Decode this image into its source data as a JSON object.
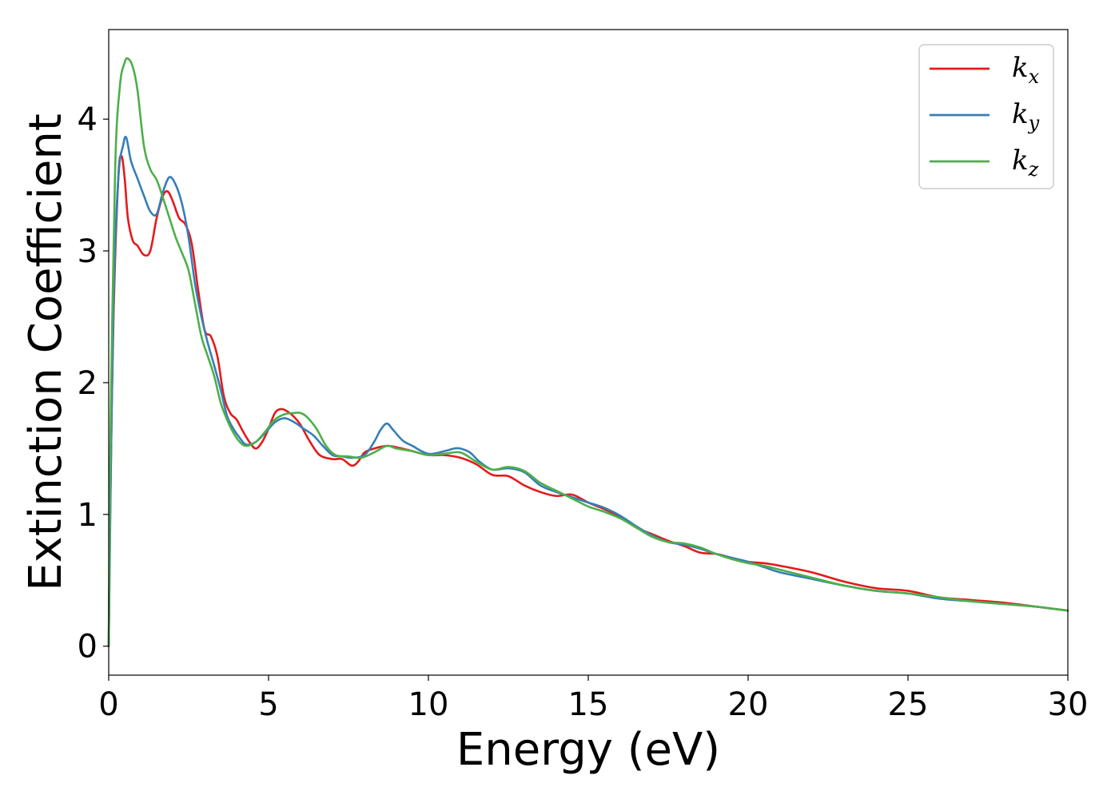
{
  "chart_data": {
    "type": "line",
    "title": "",
    "xlabel": "Energy (eV)",
    "ylabel": "Extinction Coefficient",
    "xlim": [
      0,
      30
    ],
    "ylim": [
      -0.22,
      4.68
    ],
    "xticks": [
      0,
      5,
      10,
      15,
      20,
      25,
      30
    ],
    "xtick_labels": [
      "0",
      "5",
      "10",
      "15",
      "20",
      "25",
      "30"
    ],
    "yticks": [
      0,
      1,
      2,
      3,
      4
    ],
    "ytick_labels": [
      "0",
      "1",
      "2",
      "3",
      "4"
    ],
    "grid": false,
    "legend_position": "top-right",
    "colors": {
      "kx": "#e41a1c",
      "ky": "#377eb8",
      "kz": "#4daf4a"
    },
    "series": [
      {
        "name": "kx",
        "symbol": "k",
        "subscript": "x",
        "color": "#e41a1c",
        "points": [
          [
            0,
            0
          ],
          [
            0.05,
            1.1
          ],
          [
            0.15,
            2.5
          ],
          [
            0.3,
            3.55
          ],
          [
            0.4,
            3.72
          ],
          [
            0.5,
            3.55
          ],
          [
            0.6,
            3.25
          ],
          [
            0.75,
            3.08
          ],
          [
            0.9,
            3.04
          ],
          [
            1.1,
            2.97
          ],
          [
            1.3,
            3.0
          ],
          [
            1.5,
            3.25
          ],
          [
            1.7,
            3.42
          ],
          [
            1.85,
            3.45
          ],
          [
            2.0,
            3.38
          ],
          [
            2.2,
            3.25
          ],
          [
            2.4,
            3.2
          ],
          [
            2.6,
            3.05
          ],
          [
            2.8,
            2.7
          ],
          [
            3.0,
            2.4
          ],
          [
            3.2,
            2.35
          ],
          [
            3.4,
            2.2
          ],
          [
            3.6,
            1.9
          ],
          [
            3.8,
            1.77
          ],
          [
            4.0,
            1.72
          ],
          [
            4.2,
            1.63
          ],
          [
            4.4,
            1.55
          ],
          [
            4.6,
            1.5
          ],
          [
            4.8,
            1.55
          ],
          [
            5.0,
            1.65
          ],
          [
            5.2,
            1.77
          ],
          [
            5.4,
            1.8
          ],
          [
            5.6,
            1.78
          ],
          [
            5.8,
            1.74
          ],
          [
            6.0,
            1.68
          ],
          [
            6.3,
            1.55
          ],
          [
            6.6,
            1.45
          ],
          [
            7.0,
            1.42
          ],
          [
            7.3,
            1.42
          ],
          [
            7.6,
            1.37
          ],
          [
            7.8,
            1.4
          ],
          [
            8.0,
            1.47
          ],
          [
            8.3,
            1.5
          ],
          [
            8.7,
            1.52
          ],
          [
            9.0,
            1.51
          ],
          [
            9.5,
            1.48
          ],
          [
            10.0,
            1.45
          ],
          [
            10.5,
            1.45
          ],
          [
            11.0,
            1.43
          ],
          [
            11.5,
            1.38
          ],
          [
            12.0,
            1.3
          ],
          [
            12.5,
            1.29
          ],
          [
            13.0,
            1.22
          ],
          [
            13.5,
            1.17
          ],
          [
            14.0,
            1.14
          ],
          [
            14.5,
            1.15
          ],
          [
            15.0,
            1.09
          ],
          [
            15.5,
            1.04
          ],
          [
            16.0,
            0.98
          ],
          [
            16.5,
            0.9
          ],
          [
            17.0,
            0.85
          ],
          [
            17.5,
            0.8
          ],
          [
            18.0,
            0.76
          ],
          [
            18.5,
            0.71
          ],
          [
            19.0,
            0.7
          ],
          [
            19.5,
            0.67
          ],
          [
            20.0,
            0.64
          ],
          [
            20.5,
            0.63
          ],
          [
            21.0,
            0.61
          ],
          [
            22.0,
            0.56
          ],
          [
            23.0,
            0.49
          ],
          [
            24.0,
            0.44
          ],
          [
            25.0,
            0.42
          ],
          [
            26.0,
            0.37
          ],
          [
            27.0,
            0.35
          ],
          [
            28.0,
            0.33
          ],
          [
            29.0,
            0.3
          ],
          [
            30.0,
            0.27
          ]
        ]
      },
      {
        "name": "ky",
        "symbol": "k",
        "subscript": "y",
        "color": "#377eb8",
        "points": [
          [
            0,
            0
          ],
          [
            0.05,
            1.0
          ],
          [
            0.15,
            2.6
          ],
          [
            0.3,
            3.55
          ],
          [
            0.45,
            3.8
          ],
          [
            0.55,
            3.86
          ],
          [
            0.7,
            3.68
          ],
          [
            0.9,
            3.55
          ],
          [
            1.1,
            3.42
          ],
          [
            1.3,
            3.3
          ],
          [
            1.5,
            3.28
          ],
          [
            1.7,
            3.45
          ],
          [
            1.9,
            3.56
          ],
          [
            2.1,
            3.5
          ],
          [
            2.3,
            3.35
          ],
          [
            2.5,
            3.1
          ],
          [
            2.7,
            2.75
          ],
          [
            2.9,
            2.5
          ],
          [
            3.1,
            2.3
          ],
          [
            3.3,
            2.13
          ],
          [
            3.5,
            1.95
          ],
          [
            3.7,
            1.75
          ],
          [
            3.9,
            1.65
          ],
          [
            4.1,
            1.58
          ],
          [
            4.3,
            1.53
          ],
          [
            4.6,
            1.55
          ],
          [
            4.9,
            1.62
          ],
          [
            5.2,
            1.7
          ],
          [
            5.5,
            1.73
          ],
          [
            5.8,
            1.7
          ],
          [
            6.1,
            1.65
          ],
          [
            6.4,
            1.6
          ],
          [
            6.7,
            1.52
          ],
          [
            7.0,
            1.45
          ],
          [
            7.3,
            1.44
          ],
          [
            7.6,
            1.43
          ],
          [
            8.0,
            1.45
          ],
          [
            8.3,
            1.55
          ],
          [
            8.5,
            1.64
          ],
          [
            8.7,
            1.69
          ],
          [
            8.9,
            1.64
          ],
          [
            9.2,
            1.56
          ],
          [
            9.5,
            1.52
          ],
          [
            10.0,
            1.46
          ],
          [
            10.5,
            1.48
          ],
          [
            10.8,
            1.5
          ],
          [
            11.0,
            1.5
          ],
          [
            11.3,
            1.47
          ],
          [
            11.6,
            1.4
          ],
          [
            12.0,
            1.34
          ],
          [
            12.5,
            1.35
          ],
          [
            13.0,
            1.32
          ],
          [
            13.5,
            1.22
          ],
          [
            14.0,
            1.17
          ],
          [
            14.5,
            1.13
          ],
          [
            15.0,
            1.09
          ],
          [
            15.5,
            1.05
          ],
          [
            16.0,
            0.99
          ],
          [
            16.5,
            0.91
          ],
          [
            17.0,
            0.84
          ],
          [
            17.5,
            0.79
          ],
          [
            18.0,
            0.77
          ],
          [
            18.5,
            0.74
          ],
          [
            19.0,
            0.7
          ],
          [
            19.5,
            0.67
          ],
          [
            20.0,
            0.64
          ],
          [
            20.5,
            0.6
          ],
          [
            21.0,
            0.56
          ],
          [
            22.0,
            0.51
          ],
          [
            23.0,
            0.46
          ],
          [
            24.0,
            0.42
          ],
          [
            25.0,
            0.4
          ],
          [
            26.0,
            0.36
          ],
          [
            27.0,
            0.34
          ],
          [
            28.0,
            0.32
          ],
          [
            29.0,
            0.3
          ],
          [
            30.0,
            0.27
          ]
        ]
      },
      {
        "name": "kz",
        "symbol": "k",
        "subscript": "z",
        "color": "#4daf4a",
        "points": [
          [
            0,
            0
          ],
          [
            0.05,
            1.5
          ],
          [
            0.2,
            3.6
          ],
          [
            0.35,
            4.25
          ],
          [
            0.5,
            4.43
          ],
          [
            0.6,
            4.46
          ],
          [
            0.75,
            4.4
          ],
          [
            0.9,
            4.22
          ],
          [
            1.1,
            3.8
          ],
          [
            1.3,
            3.62
          ],
          [
            1.5,
            3.54
          ],
          [
            1.7,
            3.4
          ],
          [
            1.9,
            3.25
          ],
          [
            2.1,
            3.1
          ],
          [
            2.3,
            2.98
          ],
          [
            2.5,
            2.85
          ],
          [
            2.7,
            2.6
          ],
          [
            2.9,
            2.35
          ],
          [
            3.1,
            2.2
          ],
          [
            3.3,
            2.05
          ],
          [
            3.5,
            1.85
          ],
          [
            3.7,
            1.72
          ],
          [
            3.9,
            1.62
          ],
          [
            4.1,
            1.55
          ],
          [
            4.3,
            1.52
          ],
          [
            4.6,
            1.55
          ],
          [
            4.9,
            1.63
          ],
          [
            5.2,
            1.72
          ],
          [
            5.5,
            1.76
          ],
          [
            5.8,
            1.77
          ],
          [
            6.0,
            1.77
          ],
          [
            6.2,
            1.74
          ],
          [
            6.5,
            1.65
          ],
          [
            6.8,
            1.52
          ],
          [
            7.1,
            1.45
          ],
          [
            7.5,
            1.44
          ],
          [
            7.9,
            1.43
          ],
          [
            8.3,
            1.47
          ],
          [
            8.7,
            1.52
          ],
          [
            9.0,
            1.5
          ],
          [
            9.5,
            1.48
          ],
          [
            10.0,
            1.45
          ],
          [
            10.5,
            1.46
          ],
          [
            11.0,
            1.47
          ],
          [
            11.5,
            1.4
          ],
          [
            12.0,
            1.34
          ],
          [
            12.5,
            1.36
          ],
          [
            13.0,
            1.33
          ],
          [
            13.5,
            1.24
          ],
          [
            14.0,
            1.18
          ],
          [
            14.5,
            1.12
          ],
          [
            15.0,
            1.06
          ],
          [
            15.5,
            1.02
          ],
          [
            16.0,
            0.97
          ],
          [
            16.5,
            0.9
          ],
          [
            17.0,
            0.83
          ],
          [
            17.5,
            0.79
          ],
          [
            18.0,
            0.78
          ],
          [
            18.5,
            0.75
          ],
          [
            19.0,
            0.7
          ],
          [
            19.5,
            0.66
          ],
          [
            20.0,
            0.63
          ],
          [
            20.5,
            0.61
          ],
          [
            21.0,
            0.58
          ],
          [
            22.0,
            0.52
          ],
          [
            23.0,
            0.46
          ],
          [
            24.0,
            0.42
          ],
          [
            25.0,
            0.4
          ],
          [
            26.0,
            0.37
          ],
          [
            27.0,
            0.34
          ],
          [
            28.0,
            0.32
          ],
          [
            29.0,
            0.3
          ],
          [
            30.0,
            0.27
          ]
        ]
      }
    ]
  }
}
